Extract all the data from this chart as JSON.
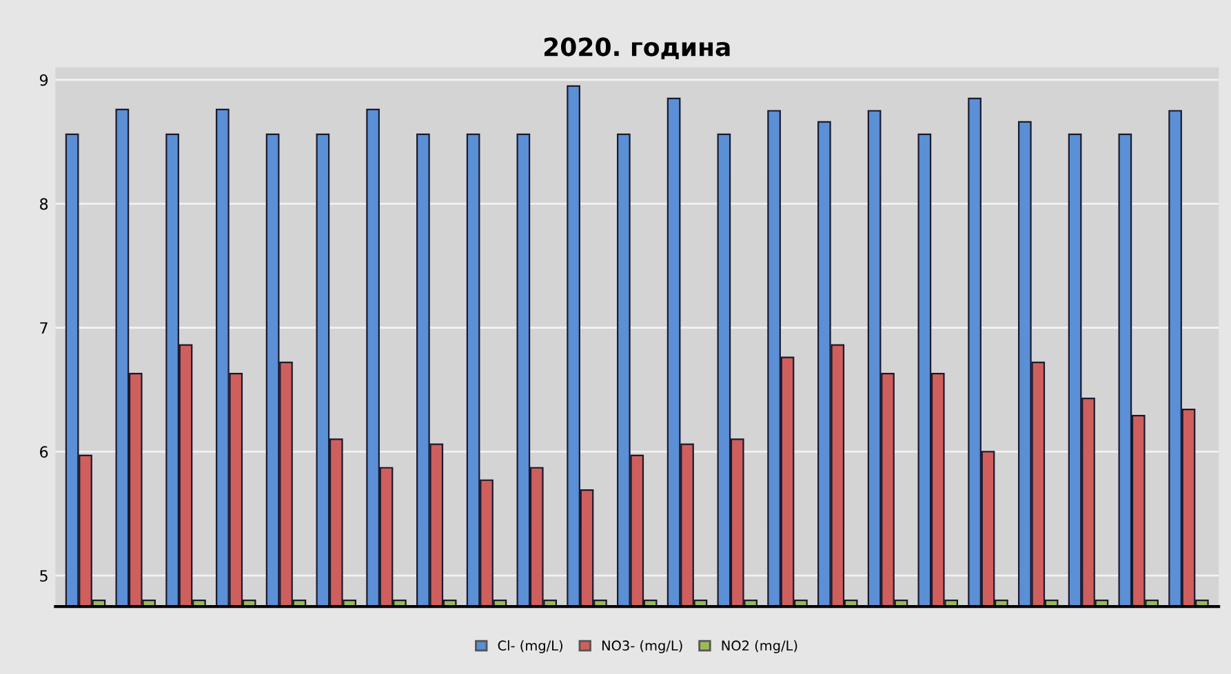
{
  "chart_data": {
    "type": "bar",
    "title": "2020. година",
    "categories": [
      null,
      null,
      null,
      null,
      null,
      null,
      null,
      null,
      null,
      null,
      null,
      null,
      null,
      null,
      null,
      null,
      null,
      null,
      null,
      null,
      null,
      null,
      null
    ],
    "series": [
      {
        "name": "Cl- (mg/L)",
        "color": "#5b8fd6",
        "values": [
          8.56,
          8.76,
          8.56,
          8.76,
          8.56,
          8.56,
          8.76,
          8.56,
          8.56,
          8.56,
          8.95,
          8.56,
          8.85,
          8.56,
          8.75,
          8.66,
          8.75,
          8.56,
          8.85,
          8.66,
          8.56,
          8.56,
          8.75
        ]
      },
      {
        "name": "NO3- (mg/L)",
        "color": "#cf5f5d",
        "values": [
          5.97,
          6.63,
          6.86,
          6.63,
          6.72,
          6.1,
          5.87,
          6.06,
          5.77,
          5.87,
          5.69,
          5.97,
          6.06,
          6.1,
          6.76,
          6.86,
          6.63,
          6.63,
          6.0,
          6.72,
          6.43,
          6.29,
          6.34
        ]
      },
      {
        "name": "NO2 (mg/L)",
        "color": "#9bbb59",
        "values": [
          4.8,
          4.8,
          4.8,
          4.8,
          4.8,
          4.8,
          4.8,
          4.8,
          4.8,
          4.8,
          4.8,
          4.8,
          4.8,
          4.8,
          4.8,
          4.8,
          4.8,
          4.8,
          4.8,
          4.8,
          4.8,
          4.8,
          4.8
        ]
      }
    ],
    "ylim": [
      4.75,
      9.1
    ],
    "yticks": [
      5,
      6,
      7,
      8,
      9
    ],
    "grid": "y",
    "legend": "bottom"
  }
}
